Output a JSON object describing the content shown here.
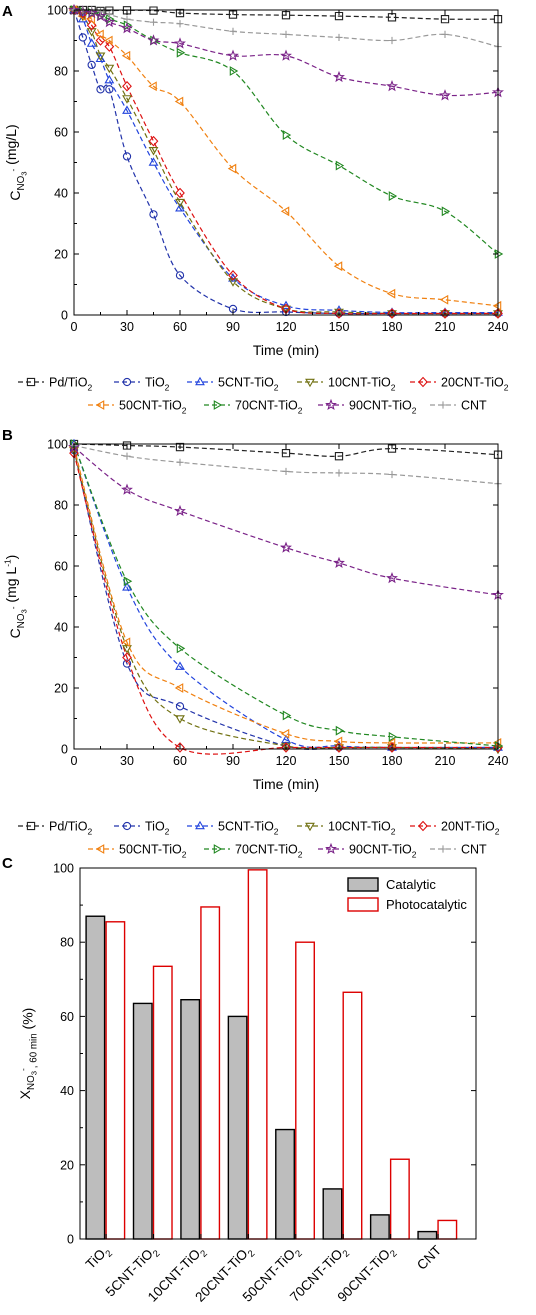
{
  "panels": [
    {
      "letter": "A",
      "title": "",
      "chart_data": {
        "type": "line",
        "xlabel": "Time (min)",
        "ylabel": {
          "main": "C",
          "sub": "NO",
          "subsub": "3",
          "sup": "-",
          "unit": " (mg/L)"
        },
        "xlim": [
          0,
          240
        ],
        "ylim": [
          0,
          100
        ],
        "xticks": [
          0,
          30,
          60,
          90,
          120,
          150,
          180,
          210,
          240
        ],
        "yticks": [
          0,
          20,
          40,
          60,
          80,
          100
        ],
        "grid": false,
        "legend_position": "bottom",
        "series": [
          {
            "name": "Pd/TiO",
            "name_sub": "2",
            "marker": "square",
            "color": "#222222",
            "x": [
              0,
              5,
              10,
              15,
              20,
              30,
              45,
              60,
              90,
              120,
              150,
              180,
              210,
              240
            ],
            "y": [
              100,
              100,
              100,
              99.7,
              99.8,
              99.9,
              99.8,
              99,
              98.5,
              98.3,
              98,
              97.6,
              97,
              97
            ]
          },
          {
            "name": "TiO",
            "name_sub": "2",
            "marker": "circle",
            "color": "#2233aa",
            "x": [
              0,
              5,
              10,
              15,
              20,
              30,
              45,
              60,
              90,
              120,
              150,
              180,
              210,
              240
            ],
            "y": [
              100,
              91,
              82,
              74,
              74,
              52,
              33,
              13,
              2,
              1,
              0.5,
              0.5,
              0.5,
              0.5
            ]
          },
          {
            "name": "5CNT-TiO",
            "name_sub": "2",
            "marker": "triangle-up",
            "color": "#2244dd",
            "x": [
              0,
              5,
              10,
              15,
              20,
              30,
              45,
              60,
              90,
              120,
              150,
              180,
              210,
              240
            ],
            "y": [
              100,
              97,
              89,
              84,
              77,
              67,
              50,
              35,
              12,
              3,
              1.5,
              0.8,
              0.8,
              0.8
            ]
          },
          {
            "name": "10CNT-TiO",
            "name_sub": "2",
            "marker": "triangle-down",
            "color": "#707010",
            "x": [
              0,
              5,
              10,
              15,
              20,
              30,
              45,
              60,
              90,
              120,
              150,
              180,
              210,
              240
            ],
            "y": [
              100,
              98,
              93,
              85,
              81,
              71,
              54,
              37,
              11,
              2,
              1,
              0.5,
              0.5,
              0.5
            ]
          },
          {
            "name": "20CNT-TiO",
            "name_sub": "2",
            "marker": "diamond",
            "color": "#dd1111",
            "x": [
              0,
              5,
              10,
              15,
              20,
              30,
              45,
              60,
              90,
              120,
              150,
              180,
              210,
              240
            ],
            "y": [
              100,
              99,
              95,
              90,
              88,
              75,
              57,
              40,
              13,
              2,
              0.5,
              0.5,
              0.5,
              0.5
            ]
          },
          {
            "name": "50CNT-TiO",
            "name_sub": "2",
            "marker": "triangle-left",
            "color": "#f08010",
            "x": [
              0,
              5,
              10,
              15,
              20,
              30,
              45,
              60,
              90,
              120,
              150,
              180,
              210,
              240
            ],
            "y": [
              100,
              98,
              97,
              92,
              90,
              85,
              75,
              70,
              48,
              34,
              16,
              7,
              5,
              3
            ]
          },
          {
            "name": "70CNT-TiO",
            "name_sub": "2",
            "marker": "triangle-right",
            "color": "#228822",
            "x": [
              0,
              5,
              10,
              15,
              20,
              30,
              45,
              60,
              90,
              120,
              150,
              180,
              210,
              240
            ],
            "y": [
              100,
              99.5,
              99,
              98,
              97,
              95,
              90,
              86,
              80,
              59,
              49,
              39,
              34,
              20
            ]
          },
          {
            "name": "90CNT-TiO",
            "name_sub": "2",
            "marker": "star",
            "color": "#7a2288",
            "x": [
              0,
              5,
              10,
              15,
              20,
              30,
              45,
              60,
              90,
              120,
              150,
              180,
              210,
              240
            ],
            "y": [
              100,
              99.5,
              99,
              98,
              96,
              94,
              90,
              89,
              85,
              85,
              78,
              75,
              72,
              73
            ]
          },
          {
            "name": "CNT",
            "name_sub": "",
            "marker": "plus",
            "color": "#999999",
            "x": [
              0,
              5,
              10,
              15,
              20,
              30,
              45,
              60,
              90,
              120,
              150,
              180,
              210,
              240
            ],
            "y": [
              100,
              100,
              100,
              99.5,
              98.5,
              97,
              96,
              95.5,
              93,
              92,
              91,
              90,
              92,
              88
            ]
          }
        ]
      }
    },
    {
      "letter": "B",
      "title": "",
      "chart_data": {
        "type": "line",
        "xlabel": "Time (min)",
        "ylabel": {
          "main": "C",
          "sub": "NO",
          "subsub": "3",
          "sup": "-",
          "unit": " (mg L",
          "unit_sup": "-1",
          "unit_end": ")"
        },
        "xlim": [
          0,
          240
        ],
        "ylim": [
          0,
          100
        ],
        "xticks": [
          0,
          30,
          60,
          90,
          120,
          150,
          180,
          210,
          240
        ],
        "yticks": [
          0,
          20,
          40,
          60,
          80,
          100
        ],
        "grid": false,
        "legend_position": "bottom",
        "series": [
          {
            "name": "Pd/TiO",
            "name_sub": "2",
            "marker": "square",
            "color": "#222222",
            "x": [
              0,
              30,
              60,
              120,
              150,
              180,
              240
            ],
            "y": [
              100,
              99.5,
              99,
              97,
              96,
              98.5,
              96.5
            ]
          },
          {
            "name": "TiO",
            "name_sub": "2",
            "marker": "circle",
            "color": "#2233aa",
            "x": [
              0,
              30,
              60,
              120,
              150,
              180,
              240
            ],
            "y": [
              98,
              28,
              14,
              1,
              0.5,
              0.5,
              0.5
            ]
          },
          {
            "name": "5CNT-TiO",
            "name_sub": "2",
            "marker": "triangle-up",
            "color": "#2244dd",
            "x": [
              0,
              30,
              60,
              120,
              150,
              180,
              240
            ],
            "y": [
              100,
              53,
              27,
              3,
              1,
              0.5,
              0.5
            ]
          },
          {
            "name": "10CNT-TiO",
            "name_sub": "2",
            "marker": "triangle-down",
            "color": "#707010",
            "x": [
              0,
              30,
              60,
              120,
              150,
              180,
              240
            ],
            "y": [
              98,
              33,
              10,
              1,
              0.5,
              0.5,
              0
            ]
          },
          {
            "name": "20NT-TiO",
            "name_sub": "2",
            "marker": "diamond",
            "color": "#dd1111",
            "x": [
              0,
              30,
              60,
              120,
              150,
              180,
              240
            ],
            "y": [
              97,
              30,
              0.5,
              0.5,
              0.5,
              0.5,
              0.5
            ]
          },
          {
            "name": "50CNT-TiO",
            "name_sub": "2",
            "marker": "triangle-left",
            "color": "#f08010",
            "x": [
              0,
              30,
              60,
              120,
              150,
              180,
              240
            ],
            "y": [
              99,
              35,
              20,
              5,
              2.5,
              2,
              2
            ]
          },
          {
            "name": "70CNT-TiO",
            "name_sub": "2",
            "marker": "triangle-right",
            "color": "#228822",
            "x": [
              0,
              30,
              60,
              120,
              150,
              180,
              240
            ],
            "y": [
              100,
              55,
              33,
              11,
              6,
              4,
              1
            ]
          },
          {
            "name": "90CNT-TiO",
            "name_sub": "2",
            "marker": "star",
            "color": "#7a2288",
            "x": [
              0,
              30,
              60,
              120,
              150,
              180,
              240
            ],
            "y": [
              99,
              85,
              78,
              66,
              61,
              56,
              50.5
            ]
          },
          {
            "name": "CNT",
            "name_sub": "",
            "marker": "plus",
            "color": "#999999",
            "x": [
              0,
              30,
              60,
              120,
              150,
              180,
              240
            ],
            "y": [
              99.5,
              96,
              94,
              91,
              90.5,
              90,
              87
            ]
          }
        ]
      }
    },
    {
      "letter": "C",
      "title": "",
      "chart_data": {
        "type": "bar",
        "ylabel": {
          "main": "X",
          "sub": "NO",
          "subsub": "3",
          "sup": "-",
          "sub2": ", 60 min",
          "unit": " (%)"
        },
        "ylim": [
          0,
          100
        ],
        "yticks": [
          0,
          20,
          40,
          60,
          80,
          100
        ],
        "grid": false,
        "legend_position": "top-right",
        "categories": [
          {
            "label": "TiO",
            "sub": "2"
          },
          {
            "label": "5CNT-TiO",
            "sub": "2"
          },
          {
            "label": "10CNT-TiO",
            "sub": "2"
          },
          {
            "label": "20CNT-TiO",
            "sub": "2"
          },
          {
            "label": "50CNT-TiO",
            "sub": "2"
          },
          {
            "label": "70CNT-TiO",
            "sub": "2"
          },
          {
            "label": "90CNT-TiO",
            "sub": "2"
          },
          {
            "label": "CNT",
            "sub": ""
          }
        ],
        "series": [
          {
            "name": "Catalytic",
            "fill": "#bdbdbd",
            "stroke": "#000000",
            "values": [
              87,
              63.5,
              64.5,
              60,
              29.5,
              13.5,
              6.5,
              2
            ]
          },
          {
            "name": "Photocatalytic",
            "fill": "#ffffff",
            "stroke": "#dd0000",
            "values": [
              85.5,
              73.5,
              89.5,
              99.5,
              80,
              66.5,
              21.5,
              5
            ]
          }
        ]
      }
    }
  ]
}
